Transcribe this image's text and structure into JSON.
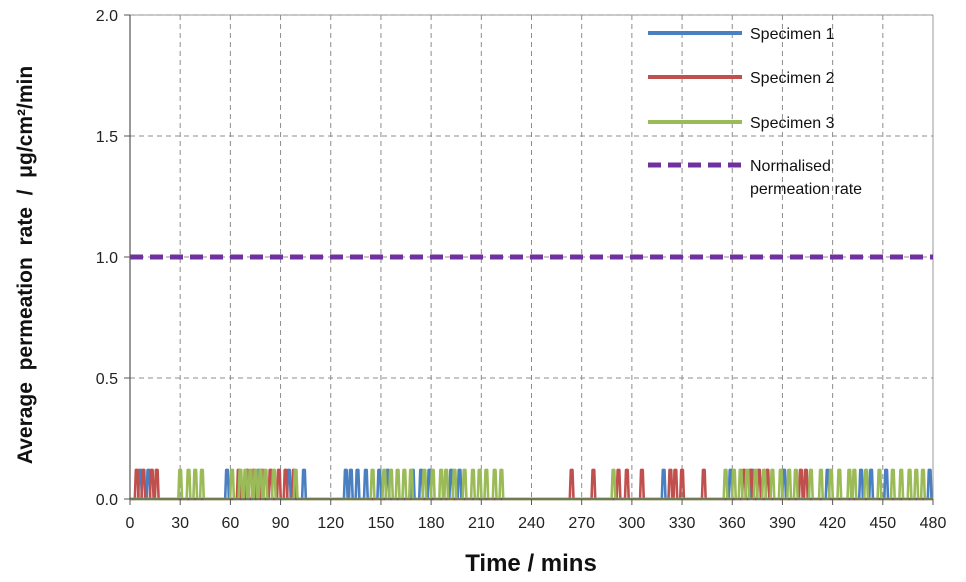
{
  "chart_data": {
    "type": "line",
    "title": "",
    "xlabel": "Time / mins",
    "ylabel": "Average  permeation  rate  /  μg/cm²/min",
    "xlim": [
      0,
      480
    ],
    "ylim": [
      0,
      2.0
    ],
    "x_ticks": [
      "0",
      "30",
      "60",
      "90",
      "120",
      "150",
      "180",
      "210",
      "240",
      "270",
      "300",
      "330",
      "360",
      "390",
      "420",
      "450",
      "480"
    ],
    "y_ticks": [
      "0.0",
      "0.5",
      "1.0",
      "1.5",
      "2.0"
    ],
    "grid": true,
    "legend_position": "top-right",
    "spike_height": 0.12,
    "series": [
      {
        "name": "Specimen 1",
        "color": "#4a7fc1",
        "style": "solid",
        "pulse_centers": [
          6,
          11,
          58,
          77,
          95,
          104,
          129,
          132,
          136,
          141,
          149,
          154,
          169,
          174,
          179,
          192,
          197,
          319,
          359,
          372,
          391,
          417,
          437,
          443,
          452,
          478
        ]
      },
      {
        "name": "Specimen 2",
        "color": "#c0504d",
        "style": "solid",
        "pulse_centers": [
          4,
          8,
          13,
          16,
          65,
          70,
          74,
          79,
          84,
          89,
          93,
          98,
          264,
          277,
          292,
          297,
          306,
          323,
          326,
          330,
          343,
          367,
          371,
          376,
          381,
          401,
          404
        ]
      },
      {
        "name": "Specimen 3",
        "color": "#9bbb59",
        "style": "solid",
        "pulse_centers": [
          30,
          35,
          39,
          43,
          61,
          66,
          69,
          72,
          75,
          78,
          81,
          86,
          99,
          145,
          152,
          156,
          160,
          164,
          168,
          176,
          181,
          186,
          189,
          194,
          200,
          205,
          209,
          213,
          218,
          222,
          289,
          356,
          361,
          365,
          369,
          374,
          379,
          384,
          389,
          394,
          398,
          407,
          413,
          419,
          424,
          430,
          433,
          440,
          448,
          456,
          461,
          466,
          470,
          474
        ]
      },
      {
        "name": "Normalised permeation rate",
        "legend_lines": [
          "Normalised",
          "permeation rate"
        ],
        "color": "#7030a0",
        "style": "dashed",
        "x": [
          0,
          480
        ],
        "y": [
          1.0,
          1.0
        ]
      }
    ]
  }
}
